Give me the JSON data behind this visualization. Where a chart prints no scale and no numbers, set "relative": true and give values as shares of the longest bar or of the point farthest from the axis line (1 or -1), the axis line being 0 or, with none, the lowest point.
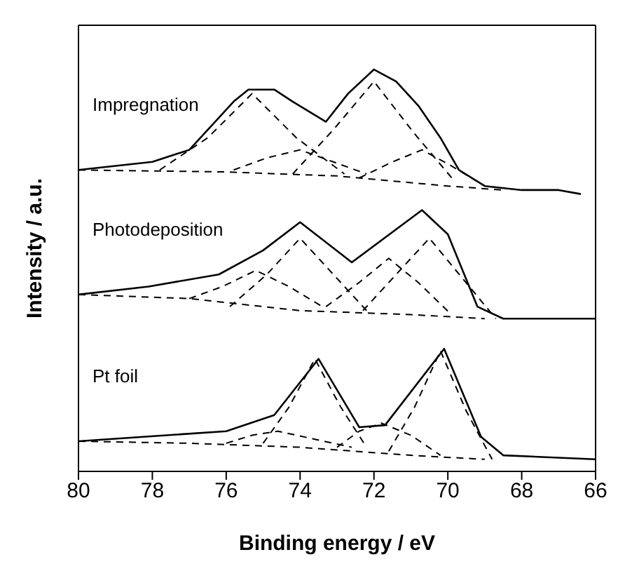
{
  "chart_data": {
    "type": "line",
    "xlabel": "Binding energy / eV",
    "ylabel": "Intensity / a.u.",
    "relative": true,
    "xlim": [
      80,
      66
    ],
    "xticks": [
      80,
      78,
      76,
      74,
      72,
      70,
      68,
      66
    ],
    "series": [
      {
        "name": "Impregnation",
        "color": "#000000",
        "line_style": "solid",
        "x": [
          80,
          79,
          78,
          77,
          76.2,
          75.8,
          75.4,
          74.7,
          74.2,
          73.3,
          72.7,
          72.0,
          71.4,
          70.8,
          70.2,
          69.7,
          69.0,
          68.0,
          67.0,
          66.4
        ],
        "values": [
          0.75,
          0.76,
          0.77,
          0.8,
          0.88,
          0.92,
          0.95,
          0.95,
          0.92,
          0.87,
          0.94,
          1.0,
          0.97,
          0.91,
          0.83,
          0.75,
          0.71,
          0.7,
          0.7,
          0.69
        ]
      },
      {
        "color": "#000000",
        "line_style": "dashed",
        "x": [
          80,
          76,
          73,
          70,
          68.5
        ],
        "values": [
          0.75,
          0.745,
          0.735,
          0.71,
          0.7
        ]
      },
      {
        "color": "#000000",
        "line_style": "dashed",
        "x": [
          77.8,
          76.5,
          75.3,
          74.1,
          72.8
        ],
        "values": [
          0.75,
          0.83,
          0.94,
          0.83,
          0.74
        ]
      },
      {
        "color": "#000000",
        "line_style": "dashed",
        "x": [
          75.8,
          74.9,
          74.0,
          73.1,
          72.2
        ],
        "values": [
          0.75,
          0.78,
          0.8,
          0.77,
          0.74
        ]
      },
      {
        "color": "#000000",
        "line_style": "dashed",
        "x": [
          74.2,
          73.1,
          72.0,
          70.9,
          69.8
        ],
        "values": [
          0.74,
          0.85,
          0.97,
          0.84,
          0.72
        ]
      },
      {
        "color": "#000000",
        "line_style": "dashed",
        "x": [
          72.4,
          71.5,
          70.7,
          69.9,
          69.0
        ],
        "values": [
          0.73,
          0.77,
          0.8,
          0.76,
          0.71
        ]
      },
      {
        "name": "Photodeposition",
        "color": "#000000",
        "line_style": "solid",
        "x": [
          80,
          78.1,
          76.2,
          75.0,
          74.0,
          72.6,
          70.7,
          70.0,
          69.2,
          68.5,
          66.0
        ],
        "values": [
          0.44,
          0.46,
          0.49,
          0.55,
          0.62,
          0.52,
          0.65,
          0.59,
          0.41,
          0.38,
          0.38
        ]
      },
      {
        "color": "#000000",
        "line_style": "dashed",
        "x": [
          80,
          77,
          74,
          71,
          69
        ],
        "values": [
          0.44,
          0.43,
          0.4,
          0.39,
          0.38
        ]
      },
      {
        "color": "#000000",
        "line_style": "dashed",
        "x": [
          75.9,
          74.9,
          74.0,
          73.1,
          72.2
        ],
        "values": [
          0.41,
          0.49,
          0.58,
          0.49,
          0.4
        ]
      },
      {
        "color": "#000000",
        "line_style": "dashed",
        "x": [
          77.0,
          76.1,
          75.2,
          74.3,
          73.4
        ],
        "values": [
          0.43,
          0.46,
          0.5,
          0.46,
          0.41
        ]
      },
      {
        "color": "#000000",
        "line_style": "dashed",
        "x": [
          72.3,
          71.4,
          70.5,
          69.6,
          68.7
        ],
        "values": [
          0.4,
          0.49,
          0.58,
          0.48,
          0.38
        ]
      },
      {
        "color": "#000000",
        "line_style": "dashed",
        "x": [
          73.3,
          72.4,
          71.6,
          70.8,
          69.9
        ],
        "values": [
          0.41,
          0.47,
          0.53,
          0.47,
          0.39
        ]
      },
      {
        "name": "Pt foil",
        "color": "#000000",
        "line_style": "solid",
        "x": [
          80,
          76,
          74.7,
          73.5,
          72.4,
          71.7,
          70.1,
          69.1,
          68.5,
          66.0
        ],
        "values": [
          0.075,
          0.1,
          0.14,
          0.28,
          0.11,
          0.115,
          0.305,
          0.086,
          0.04,
          0.03
        ]
      },
      {
        "color": "#000000",
        "line_style": "dashed",
        "x": [
          80,
          77,
          74,
          71,
          69
        ],
        "values": [
          0.075,
          0.07,
          0.06,
          0.04,
          0.03
        ]
      },
      {
        "color": "#000000",
        "line_style": "dashed",
        "x": [
          75.0,
          74.3,
          73.6,
          72.9,
          72.2
        ],
        "values": [
          0.07,
          0.16,
          0.28,
          0.16,
          0.06
        ]
      },
      {
        "color": "#000000",
        "line_style": "dashed",
        "x": [
          76.0,
          75.3,
          74.6,
          73.6,
          72.6
        ],
        "values": [
          0.07,
          0.09,
          0.1,
          0.08,
          0.06
        ]
      },
      {
        "color": "#000000",
        "line_style": "dashed",
        "x": [
          71.6,
          70.9,
          70.2,
          69.5,
          68.8
        ],
        "values": [
          0.05,
          0.16,
          0.3,
          0.15,
          0.03
        ]
      },
      {
        "color": "#000000",
        "line_style": "dashed",
        "x": [
          73.0,
          72.4,
          71.8,
          71.0,
          70.2
        ],
        "values": [
          0.06,
          0.1,
          0.12,
          0.09,
          0.04
        ]
      }
    ]
  }
}
